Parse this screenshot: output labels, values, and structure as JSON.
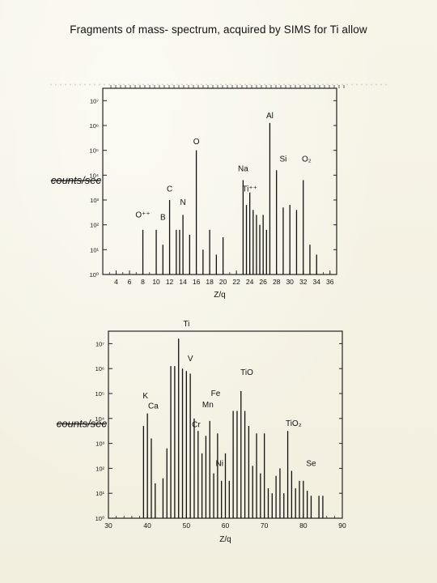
{
  "slide": {
    "title": "Fragments of  mass- spectrum, acquired  by SIMS for Ti allow"
  },
  "chart_data": [
    {
      "type": "bar",
      "style": "stick-spectrum",
      "xlabel": "Z/q",
      "ylabel": "counts/sec",
      "xlim": [
        2,
        37
      ],
      "ylim_log10": [
        0,
        7.5
      ],
      "xticks": [
        4,
        6,
        8,
        10,
        12,
        14,
        16,
        18,
        20,
        22,
        24,
        26,
        28,
        30,
        32,
        34,
        36
      ],
      "ytick_labels": [
        "10⁰",
        "10¹",
        "10²",
        "10³",
        "10⁴",
        "10⁵",
        "10⁶",
        "10⁷"
      ],
      "y_scale": "log",
      "grid": false,
      "x": [
        8,
        10,
        11,
        12,
        13,
        13.5,
        14,
        15,
        16,
        17,
        18,
        19,
        20,
        23,
        23.5,
        24,
        24.5,
        25,
        25.5,
        26,
        26.5,
        27,
        28,
        29,
        30,
        31,
        32,
        33,
        34
      ],
      "values": [
        1.8,
        1.8,
        1.2,
        3.0,
        1.8,
        1.8,
        2.4,
        1.6,
        5.0,
        1.0,
        1.8,
        0.8,
        1.5,
        3.8,
        2.8,
        3.3,
        2.6,
        2.4,
        2.0,
        2.4,
        1.8,
        6.1,
        4.2,
        2.7,
        2.8,
        2.6,
        3.8,
        1.2,
        0.8
      ],
      "annotations": [
        {
          "text": "O⁺⁺",
          "x": 8,
          "y": 2.3
        },
        {
          "text": "B",
          "x": 11,
          "y": 2.2
        },
        {
          "text": "C",
          "x": 12,
          "y": 3.35
        },
        {
          "text": "N",
          "x": 14,
          "y": 2.8
        },
        {
          "text": "O",
          "x": 16,
          "y": 5.25
        },
        {
          "text": "Na",
          "x": 23,
          "y": 4.15
        },
        {
          "text": "Ti⁺⁺",
          "x": 24,
          "y": 3.35
        },
        {
          "text": "Al",
          "x": 27,
          "y": 6.3
        },
        {
          "text": "Si",
          "x": 29,
          "y": 4.55
        },
        {
          "text": "O₂",
          "x": 32.5,
          "y": 4.55
        }
      ]
    },
    {
      "type": "bar",
      "style": "stick-spectrum",
      "xlabel": "Z/q",
      "ylabel": "counts/sec",
      "xlim": [
        30,
        90
      ],
      "ylim_log10": [
        0,
        7.5
      ],
      "xticks": [
        30,
        40,
        50,
        60,
        70,
        80,
        90
      ],
      "ytick_labels": [
        "10⁰",
        "10¹",
        "10²",
        "10³",
        "10⁴",
        "10⁵",
        "10⁶",
        "10⁷"
      ],
      "y_scale": "log",
      "grid": false,
      "x": [
        39,
        40,
        41,
        42,
        44,
        45,
        46,
        47,
        48,
        49,
        50,
        51,
        52,
        53,
        54,
        55,
        56,
        57,
        58,
        59,
        60,
        61,
        62,
        63,
        64,
        65,
        66,
        67,
        68,
        69,
        70,
        71,
        72,
        73,
        74,
        75,
        76,
        77,
        78,
        79,
        80,
        81,
        82,
        84,
        85
      ],
      "values": [
        3.7,
        4.2,
        3.2,
        1.4,
        1.6,
        2.8,
        6.1,
        6.1,
        7.2,
        6.0,
        5.9,
        5.8,
        4.0,
        3.5,
        2.6,
        3.3,
        3.9,
        1.8,
        3.4,
        1.5,
        2.6,
        1.5,
        4.3,
        4.3,
        5.1,
        4.3,
        3.7,
        2.1,
        3.4,
        1.8,
        3.4,
        1.2,
        1.0,
        1.7,
        2.0,
        1.0,
        3.5,
        1.9,
        1.2,
        1.5,
        1.5,
        1.1,
        0.9,
        0.9,
        0.9
      ],
      "annotations": [
        {
          "text": "K",
          "x": 39.5,
          "y": 4.8
        },
        {
          "text": "Ca",
          "x": 41.5,
          "y": 4.4
        },
        {
          "text": "Ti",
          "x": 50,
          "y": 7.7
        },
        {
          "text": "V",
          "x": 51,
          "y": 6.3
        },
        {
          "text": "Fe",
          "x": 57.5,
          "y": 4.9
        },
        {
          "text": "Mn",
          "x": 55.5,
          "y": 4.45
        },
        {
          "text": "Cr",
          "x": 52.5,
          "y": 3.65
        },
        {
          "text": "Ni",
          "x": 58.5,
          "y": 2.1
        },
        {
          "text": "TiO",
          "x": 65.5,
          "y": 5.75
        },
        {
          "text": "TiO₂",
          "x": 77.5,
          "y": 3.7
        },
        {
          "text": "Se",
          "x": 82,
          "y": 2.1
        }
      ]
    }
  ]
}
